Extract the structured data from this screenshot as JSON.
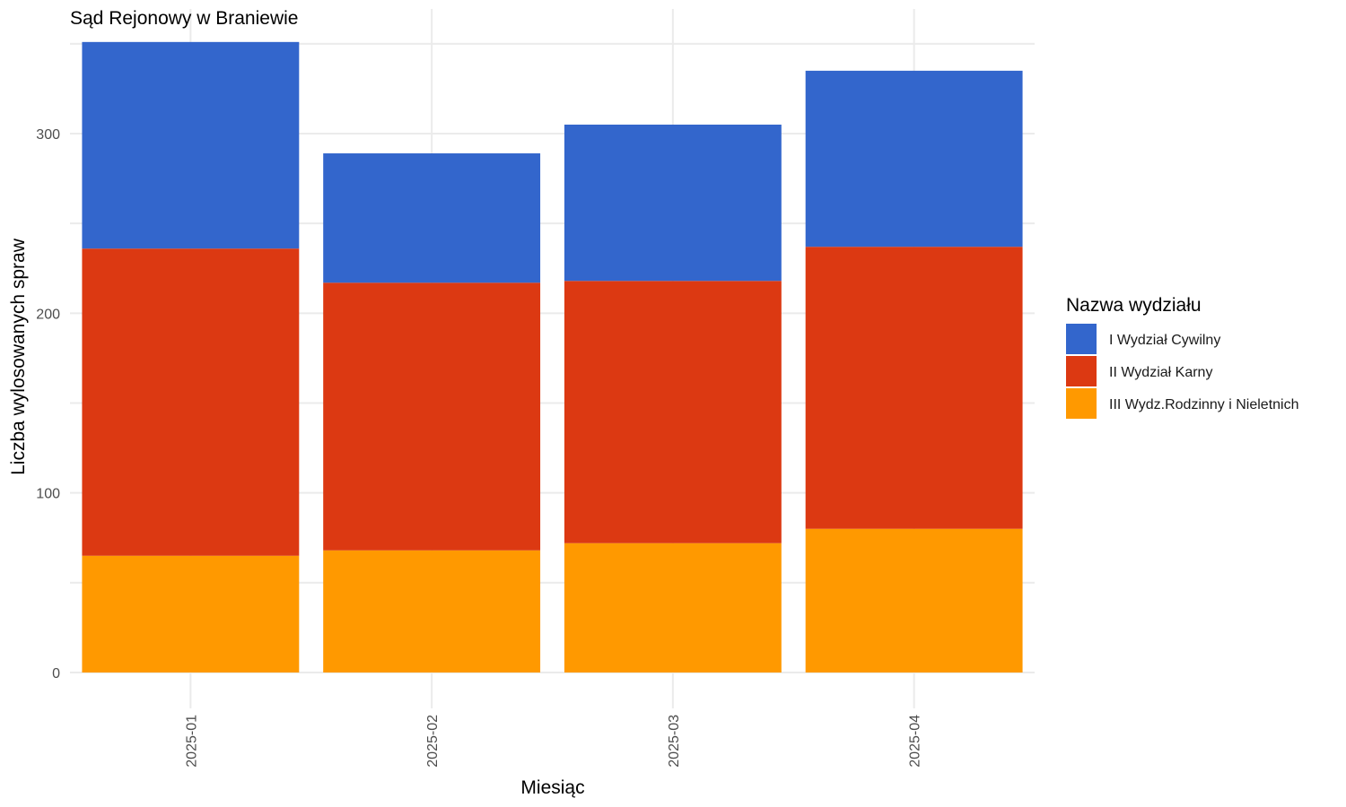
{
  "chart_data": {
    "type": "bar",
    "stacked": true,
    "title": "Sąd Rejonowy w Braniewie",
    "xlabel": "Miesiąc",
    "ylabel": "Liczba wylosowanych spraw",
    "categories": [
      "2025-01",
      "2025-02",
      "2025-03",
      "2025-04"
    ],
    "ylim": [
      0,
      360
    ],
    "yticks": [
      0,
      100,
      200,
      300
    ],
    "grid": true,
    "legend": {
      "title": "Nazwa wydziału",
      "position": "right"
    },
    "series": [
      {
        "name": "III Wydz.Rodzinny i Nieletnich",
        "color": "#FF9900",
        "values": [
          65,
          68,
          72,
          80
        ]
      },
      {
        "name": "II Wydział Karny",
        "color": "#DC3912",
        "values": [
          171,
          149,
          146,
          157
        ]
      },
      {
        "name": "I Wydział Cywilny",
        "color": "#3366CC",
        "values": [
          115,
          72,
          87,
          98
        ]
      }
    ],
    "legend_order": [
      "I Wydział Cywilny",
      "II Wydział Karny",
      "III Wydz.Rodzinny i Nieletnich"
    ]
  }
}
